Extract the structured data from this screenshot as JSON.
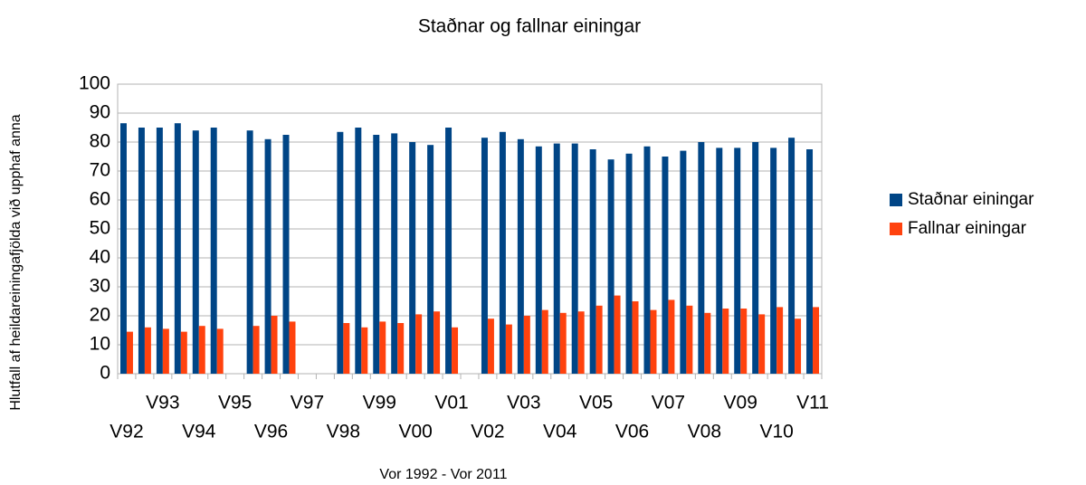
{
  "chart_data": {
    "type": "bar",
    "title": "Staðnar og fallnar einingar",
    "x_label": "Vor 1992 - Vor 2011",
    "y_label": "Hlutfall af heildareiningafjölda við upphaf anna",
    "categories": [
      "V92",
      null,
      "V93",
      null,
      "V94",
      null,
      "V95",
      null,
      "V96",
      null,
      "V97",
      null,
      "V98",
      null,
      "V99",
      null,
      "V00",
      null,
      "V01",
      null,
      "V02",
      null,
      "V03",
      null,
      "V04",
      null,
      "V05",
      null,
      "V06",
      null,
      "V07",
      null,
      "V08",
      null,
      "V09",
      null,
      "V10",
      null,
      "V11"
    ],
    "series": [
      {
        "name": "Staðnar einingar",
        "color": "#004586",
        "values": [
          86.5,
          85,
          85,
          86.5,
          84,
          85,
          null,
          84,
          81,
          82.5,
          null,
          null,
          83.5,
          85,
          82.5,
          83,
          80,
          79,
          85,
          null,
          81.5,
          83.5,
          81,
          78.5,
          79.5,
          79.5,
          77.5,
          74,
          76,
          78.5,
          75,
          77,
          80,
          78,
          78,
          80,
          78,
          81.5,
          77.5
        ]
      },
      {
        "name": "Fallnar einingar",
        "color": "#ff420e",
        "values": [
          14.5,
          16,
          15.5,
          14.5,
          16.5,
          15.5,
          null,
          16.5,
          20,
          18,
          null,
          null,
          17.5,
          16,
          18,
          17.5,
          20.5,
          21.5,
          16,
          null,
          19,
          17,
          20,
          22,
          21,
          21.5,
          23.5,
          27,
          25,
          22,
          25.5,
          23.5,
          21,
          22.5,
          22.5,
          20.5,
          23,
          19,
          23
        ]
      }
    ],
    "ylim": [
      0,
      100
    ],
    "yticks": [
      0,
      10,
      20,
      30,
      40,
      50,
      60,
      70,
      80,
      90,
      100
    ],
    "grid": true,
    "legend": "right"
  }
}
